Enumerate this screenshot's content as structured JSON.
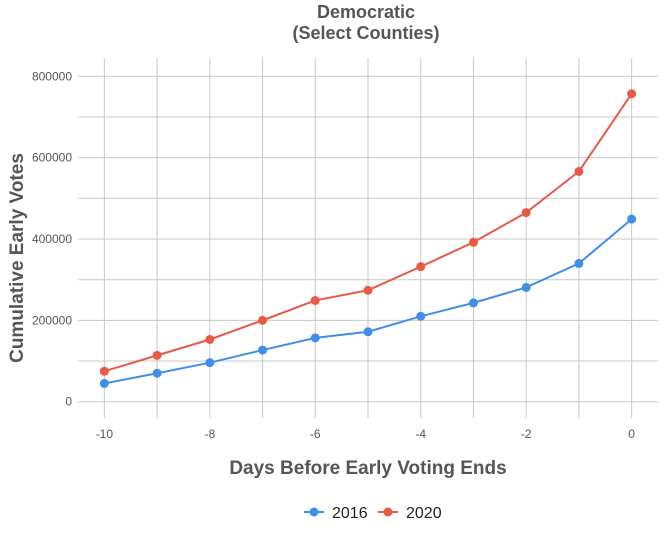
{
  "chart_data": {
    "type": "line",
    "title": "Democratic",
    "subtitle": "(Select Counties)",
    "xlabel": "Days Before Early Voting Ends",
    "ylabel": "Cumulative Early Votes",
    "x": [
      -10,
      -9,
      -8,
      -7,
      -6,
      -5,
      -4,
      -3,
      -2,
      -1,
      0
    ],
    "xlim": [
      -10.5,
      0.5
    ],
    "ylim": [
      -40000,
      845000
    ],
    "x_ticks": [
      -10,
      -8,
      -6,
      -4,
      -2,
      0
    ],
    "y_ticks": [
      0,
      200000,
      400000,
      600000,
      800000
    ],
    "grid": true,
    "legend_position": "bottom",
    "series": [
      {
        "name": "2016",
        "color": "#3f8fea",
        "values": [
          45000,
          70000,
          96000,
          127000,
          157000,
          172000,
          210000,
          243000,
          281000,
          340000,
          449000
        ]
      },
      {
        "name": "2020",
        "color": "#e85a45",
        "values": [
          75000,
          114000,
          153000,
          200000,
          249000,
          274000,
          332000,
          392000,
          465000,
          566000,
          757000
        ]
      }
    ]
  }
}
